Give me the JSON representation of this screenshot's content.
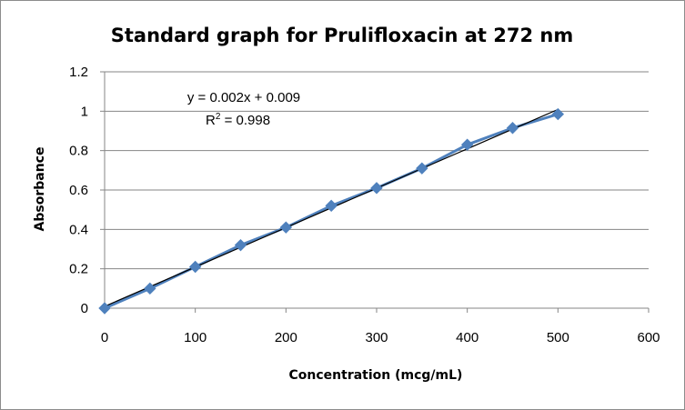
{
  "chart_data": {
    "type": "scatter",
    "title": "Standard graph for Prulifloxacin  at 272 nm",
    "xlabel": "Concentration (mcg/mL)",
    "ylabel": "Absorbance",
    "xlim": [
      0,
      600
    ],
    "ylim": [
      0,
      1.2
    ],
    "xticks": [
      "0",
      "100",
      "200",
      "300",
      "400",
      "500",
      "600"
    ],
    "yticks": [
      "0",
      "0.2",
      "0.4",
      "0.6",
      "0.8",
      "1",
      "1.2"
    ],
    "grid": true,
    "legend": "none",
    "series": [
      {
        "marker": "diamond",
        "color": "#4f81bd",
        "x": [
          0,
          50,
          100,
          150,
          200,
          250,
          300,
          350,
          400,
          450,
          500
        ],
        "y": [
          0,
          0.1,
          0.21,
          0.32,
          0.41,
          0.52,
          0.61,
          0.71,
          0.83,
          0.915,
          0.985
        ]
      }
    ],
    "trendline": {
      "slope": 0.002,
      "intercept": 0.009,
      "x_range": [
        0,
        500
      ],
      "color": "#000000"
    },
    "annotations": {
      "equation": "y = 0.002x + 0.009",
      "r2_prefix": "R",
      "r2_sup": "2",
      "r2_value": " = 0.998"
    }
  }
}
